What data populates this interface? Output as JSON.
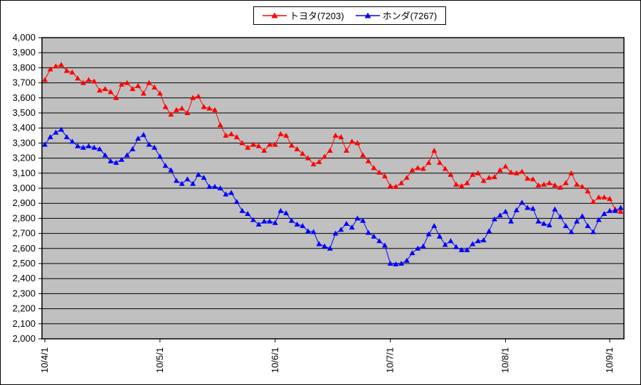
{
  "chart_data": {
    "type": "line",
    "title": "",
    "xlabel": "",
    "ylabel": "",
    "ylim": [
      2000,
      4000
    ],
    "y_tick_step": 100,
    "y_tick_format": "thousands-comma",
    "grid": "horizontal-only",
    "plot_bg_color": "#c0c0c0",
    "grid_color": "#000000",
    "axis_color": "#000000",
    "legend_position": "top-center",
    "x_tick_labels": [
      "10/4/1",
      "10/5/1",
      "10/6/1",
      "10/7/1",
      "10/8/1",
      "10/9/1"
    ],
    "x_tick_indices": [
      0,
      21,
      42,
      63,
      84,
      103
    ],
    "series": [
      {
        "name": "トヨタ(7203)",
        "color": "#ff0000",
        "marker": "triangle",
        "values": [
          3720,
          3790,
          3810,
          3820,
          3780,
          3770,
          3730,
          3700,
          3720,
          3710,
          3650,
          3660,
          3640,
          3600,
          3690,
          3700,
          3660,
          3680,
          3630,
          3700,
          3670,
          3630,
          3540,
          3490,
          3520,
          3530,
          3500,
          3600,
          3610,
          3540,
          3530,
          3520,
          3420,
          3350,
          3360,
          3340,
          3300,
          3270,
          3290,
          3280,
          3250,
          3290,
          3290,
          3360,
          3350,
          3285,
          3260,
          3230,
          3200,
          3160,
          3175,
          3210,
          3250,
          3350,
          3340,
          3250,
          3310,
          3300,
          3220,
          3180,
          3135,
          3105,
          3080,
          3015,
          3010,
          3035,
          3070,
          3120,
          3135,
          3130,
          3170,
          3250,
          3170,
          3130,
          3090,
          3025,
          3015,
          3035,
          3090,
          3100,
          3050,
          3070,
          3075,
          3120,
          3145,
          3105,
          3100,
          3110,
          3065,
          3060,
          3020,
          3025,
          3035,
          3020,
          3005,
          3035,
          3100,
          3025,
          3010,
          2980,
          2910,
          2940,
          2940,
          2930,
          2860,
          2845
        ]
      },
      {
        "name": "ホンダ(7267)",
        "color": "#0000ff",
        "marker": "triangle",
        "values": [
          3290,
          3340,
          3370,
          3390,
          3340,
          3310,
          3280,
          3270,
          3280,
          3270,
          3260,
          3220,
          3180,
          3170,
          3190,
          3220,
          3260,
          3330,
          3355,
          3290,
          3270,
          3210,
          3150,
          3120,
          3050,
          3030,
          3060,
          3030,
          3090,
          3070,
          3010,
          3010,
          3000,
          2960,
          2970,
          2910,
          2850,
          2830,
          2790,
          2760,
          2780,
          2780,
          2770,
          2850,
          2835,
          2785,
          2760,
          2750,
          2715,
          2710,
          2630,
          2615,
          2600,
          2700,
          2725,
          2765,
          2740,
          2800,
          2785,
          2705,
          2680,
          2650,
          2620,
          2500,
          2495,
          2500,
          2520,
          2570,
          2600,
          2615,
          2695,
          2750,
          2680,
          2625,
          2650,
          2610,
          2590,
          2590,
          2630,
          2650,
          2655,
          2715,
          2795,
          2820,
          2845,
          2780,
          2855,
          2905,
          2870,
          2865,
          2780,
          2765,
          2755,
          2860,
          2810,
          2750,
          2710,
          2780,
          2815,
          2750,
          2710,
          2790,
          2830,
          2850,
          2850,
          2870
        ]
      }
    ]
  }
}
